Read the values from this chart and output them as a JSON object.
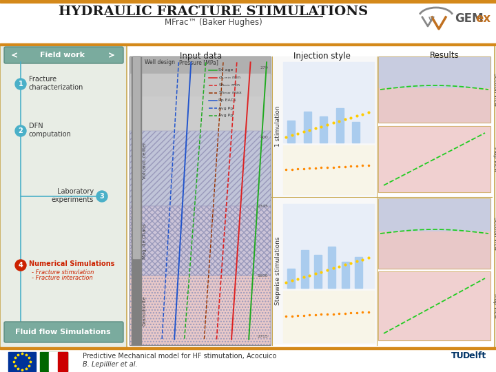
{
  "title": "Hydraulic Fracture Stimulations",
  "subtitle": "MFrac™ (Baker Hughes)",
  "bg_color": "#f0eeeb",
  "border_color": "#c8a850",
  "teal_color": "#7aab9e",
  "teal_dark": "#5a8c80",
  "blue_step": "#4ab0c8",
  "red_step": "#cc2200",
  "fieldwork_label": "Field work",
  "fluid_flow_label": "Fluid flow Simulations",
  "input_data_label": "Input data",
  "injection_style_label": "Injection style",
  "results_label": "Results",
  "section_view_label": "Section view",
  "map_view_label": "Map view",
  "footer_text1": "Predictive Mechanical model for HF stimutation, Acocuico",
  "footer_text2": "B. Lepillier et al.",
  "orange_bar": "#d4891a",
  "white": "#ffffff",
  "light_gray": "#f0f0f0",
  "panel_bg": "#e8ede5"
}
